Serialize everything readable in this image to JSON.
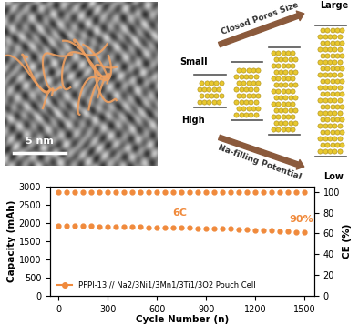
{
  "chart_data": {
    "type": "scatter",
    "x_label": "Cycle Number (n)",
    "y_label": "Capacity (mAh)",
    "y2_label": "CE (%)",
    "x": [
      0,
      50,
      100,
      150,
      200,
      250,
      300,
      350,
      400,
      450,
      500,
      550,
      600,
      650,
      700,
      750,
      800,
      850,
      900,
      950,
      1000,
      1050,
      1100,
      1150,
      1200,
      1250,
      1300,
      1350,
      1400,
      1450,
      1500
    ],
    "series": [
      {
        "name": "PFPI-13 // Na2/3Ni1/3Mn1/3Ti1/3O2 Pouch Cell",
        "color": "#f08a3c",
        "marker": "circle",
        "values": [
          1930,
          1925,
          1922,
          1918,
          1915,
          1910,
          1906,
          1902,
          1898,
          1895,
          1890,
          1886,
          1882,
          1878,
          1874,
          1870,
          1865,
          1860,
          1855,
          1850,
          1845,
          1838,
          1830,
          1822,
          1812,
          1800,
          1790,
          1778,
          1765,
          1752,
          1740
        ]
      },
      {
        "color": "#f08a3c",
        "marker": "circle",
        "axis": "y2",
        "values": [
          99.8,
          99.8,
          99.8,
          99.8,
          99.8,
          99.8,
          99.8,
          99.8,
          99.8,
          99.8,
          99.8,
          99.8,
          99.8,
          99.8,
          99.8,
          99.8,
          99.8,
          99.8,
          99.8,
          99.8,
          99.8,
          99.8,
          99.8,
          99.8,
          99.8,
          99.8,
          99.8,
          99.8,
          99.8,
          99.8,
          99.8
        ]
      }
    ],
    "xlim": [
      -50,
      1560
    ],
    "xticks": [
      0,
      300,
      600,
      900,
      1200,
      1500
    ],
    "ylim": [
      0,
      3000
    ],
    "yticks": [
      0,
      500,
      1000,
      1500,
      2000,
      2500,
      3000
    ],
    "y2lim": [
      0,
      105
    ],
    "y2ticks": [
      0,
      20,
      40,
      60,
      80,
      100
    ],
    "annotations": [
      "6C",
      "90%"
    ],
    "legend": "lower left"
  },
  "panels": {
    "tem_image": {
      "scale_bar": "5 nm"
    },
    "diagram": {
      "top_arrow": "Closed Pores Size",
      "bottom_arrow": "Na-filling Potential",
      "top_start": "Small",
      "top_end": "Large",
      "bottom_start": "High",
      "bottom_end": "Low"
    }
  }
}
